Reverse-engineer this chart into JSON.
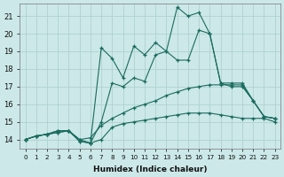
{
  "x": [
    0,
    1,
    2,
    3,
    4,
    5,
    6,
    7,
    8,
    9,
    10,
    11,
    12,
    13,
    14,
    15,
    16,
    17,
    18,
    19,
    20,
    21,
    22,
    23
  ],
  "line_jagged_high": [
    14.0,
    14.2,
    14.3,
    14.5,
    14.5,
    13.9,
    13.8,
    19.2,
    18.6,
    17.5,
    19.3,
    18.8,
    19.5,
    19.0,
    21.5,
    21.0,
    21.2,
    20.0,
    17.2,
    17.2,
    17.2,
    16.2,
    15.3,
    15.2
  ],
  "line_jagged_low": [
    14.0,
    14.2,
    14.3,
    14.5,
    14.5,
    13.9,
    13.8,
    15.0,
    17.2,
    17.0,
    17.5,
    17.3,
    18.8,
    19.0,
    18.5,
    18.5,
    20.2,
    20.0,
    17.2,
    17.0,
    17.0,
    16.2,
    15.3,
    15.2
  ],
  "line_upper_flat": [
    14.0,
    14.2,
    14.3,
    14.4,
    14.5,
    14.0,
    14.1,
    14.8,
    15.2,
    15.5,
    15.8,
    16.0,
    16.2,
    16.5,
    16.7,
    16.9,
    17.0,
    17.1,
    17.1,
    17.1,
    17.1,
    16.2,
    15.3,
    15.2
  ],
  "line_lower_flat": [
    14.0,
    14.2,
    14.3,
    14.4,
    14.5,
    14.0,
    13.8,
    14.0,
    14.7,
    14.9,
    15.0,
    15.1,
    15.2,
    15.3,
    15.4,
    15.5,
    15.5,
    15.5,
    15.4,
    15.3,
    15.2,
    15.2,
    15.2,
    15.0
  ],
  "color": "#1a6b5e",
  "bg_color": "#cce8e8",
  "grid_color": "#aacece",
  "xlabel": "Humidex (Indice chaleur)",
  "xlim": [
    -0.5,
    23.5
  ],
  "ylim": [
    13.5,
    21.7
  ],
  "yticks": [
    14,
    15,
    16,
    17,
    18,
    19,
    20,
    21
  ],
  "xticks": [
    0,
    1,
    2,
    3,
    4,
    5,
    6,
    7,
    8,
    9,
    10,
    11,
    12,
    13,
    14,
    15,
    16,
    17,
    18,
    19,
    20,
    21,
    22,
    23
  ]
}
